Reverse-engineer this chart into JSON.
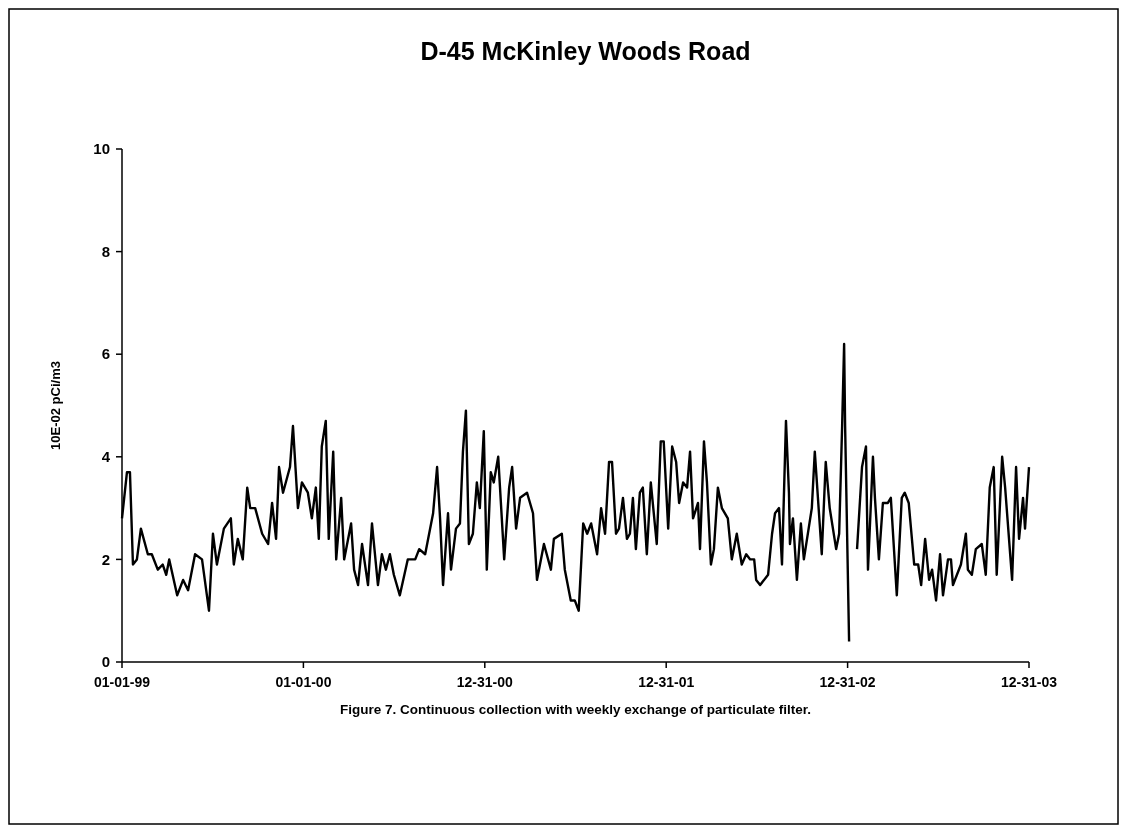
{
  "chart_data": {
    "type": "line",
    "title": "D-45 McKinley Woods Road",
    "ylabel": "10E-02 pCi/m3",
    "annotations": [
      "Figure 7.  Continuous collection with weekly exchange of particulate filter."
    ],
    "xlim": [
      "1999-01-01",
      "2003-12-31"
    ],
    "xticks": [
      {
        "value": "1999-01-01",
        "label": "01-01-99"
      },
      {
        "value": "2000-01-01",
        "label": "01-01-00"
      },
      {
        "value": "2000-12-31",
        "label": "12-31-00"
      },
      {
        "value": "2001-12-31",
        "label": "12-31-01"
      },
      {
        "value": "2002-12-31",
        "label": "12-31-02"
      },
      {
        "value": "2003-12-31",
        "label": "12-31-03"
      }
    ],
    "ylim": [
      0,
      10
    ],
    "yticks": [
      0,
      2,
      4,
      6,
      8,
      10
    ],
    "grid": false,
    "marker": "none",
    "line_style": "solid",
    "series": [
      {
        "color": "#000000",
        "x": [
          "1999-01-01",
          "1999-01-11",
          "1999-01-17",
          "1999-01-23",
          "1999-01-31",
          "1999-02-08",
          "1999-02-22",
          "1999-03-02",
          "1999-03-14",
          "1999-03-24",
          "1999-03-31",
          "1999-04-06",
          "1999-04-22",
          "1999-05-04",
          "1999-05-14",
          "1999-05-28",
          "1999-06-11",
          "1999-06-25",
          "1999-07-03",
          "1999-07-11",
          "1999-07-25",
          "1999-08-08",
          "1999-08-14",
          "1999-08-22",
          "1999-09-01",
          "1999-09-10",
          "1999-09-16",
          "1999-09-26",
          "1999-10-10",
          "1999-10-22",
          "1999-10-30",
          "1999-11-07",
          "1999-11-13",
          "1999-11-21",
          "1999-12-05",
          "1999-12-11",
          "1999-12-21",
          "1999-12-29",
          "2000-01-10",
          "2000-01-18",
          "2000-01-26",
          "2000-02-01",
          "2000-02-07",
          "2000-02-15",
          "2000-02-21",
          "2000-03-01",
          "2000-03-07",
          "2000-03-17",
          "2000-03-23",
          "2000-04-06",
          "2000-04-12",
          "2000-04-20",
          "2000-04-28",
          "2000-05-10",
          "2000-05-18",
          "2000-05-30",
          "2000-06-07",
          "2000-06-15",
          "2000-06-23",
          "2000-07-01",
          "2000-07-13",
          "2000-07-29",
          "2000-08-13",
          "2000-08-21",
          "2000-09-02",
          "2000-09-18",
          "2000-09-26",
          "2000-10-02",
          "2000-10-08",
          "2000-10-18",
          "2000-10-24",
          "2000-11-03",
          "2000-11-11",
          "2000-11-17",
          "2000-11-23",
          "2000-11-29",
          "2000-12-07",
          "2000-12-15",
          "2000-12-21",
          "2000-12-29",
          "2001-01-04",
          "2001-01-12",
          "2001-01-18",
          "2001-01-27",
          "2001-02-08",
          "2001-02-18",
          "2001-02-24",
          "2001-03-04",
          "2001-03-12",
          "2001-03-26",
          "2001-04-07",
          "2001-04-15",
          "2001-04-29",
          "2001-05-13",
          "2001-05-19",
          "2001-06-04",
          "2001-06-10",
          "2001-06-22",
          "2001-06-30",
          "2001-07-08",
          "2001-07-17",
          "2001-07-25",
          "2001-08-02",
          "2001-08-14",
          "2001-08-22",
          "2001-08-30",
          "2001-09-07",
          "2001-09-13",
          "2001-09-21",
          "2001-09-27",
          "2001-10-05",
          "2001-10-13",
          "2001-10-19",
          "2001-10-25",
          "2001-10-31",
          "2001-11-08",
          "2001-11-14",
          "2001-11-22",
          "2001-11-30",
          "2001-12-12",
          "2001-12-20",
          "2001-12-26",
          "2002-01-04",
          "2002-01-12",
          "2002-01-20",
          "2002-01-26",
          "2002-02-03",
          "2002-02-11",
          "2002-02-17",
          "2002-02-23",
          "2002-03-05",
          "2002-03-09",
          "2002-03-17",
          "2002-03-23",
          "2002-03-31",
          "2002-04-06",
          "2002-04-14",
          "2002-04-22",
          "2002-05-04",
          "2002-05-12",
          "2002-05-22",
          "2002-06-01",
          "2002-06-10",
          "2002-06-18",
          "2002-06-26",
          "2002-06-30",
          "2002-07-08",
          "2002-07-24",
          "2002-08-01",
          "2002-08-07",
          "2002-08-15",
          "2002-08-21",
          "2002-08-29",
          "2002-09-04",
          "2002-09-06",
          "2002-09-12",
          "2002-09-20",
          "2002-09-28",
          "2002-10-04",
          "2002-10-20",
          "2002-10-26",
          "2002-11-09",
          "2002-11-17",
          "2002-11-25",
          "2002-12-08",
          "2002-12-14",
          "2002-12-20",
          "2002-12-24",
          "2002-12-26",
          "2003-01-03",
          "2003-01-10",
          "2003-01-19",
          "2003-01-29",
          "2003-02-06",
          "2003-02-10",
          "2003-02-20",
          "2003-02-24",
          "2003-03-04",
          "2003-03-12",
          "2003-03-22",
          "2003-03-28",
          "2003-04-09",
          "2003-04-19",
          "2003-04-25",
          "2003-05-03",
          "2003-05-14",
          "2003-05-22",
          "2003-05-28",
          "2003-06-05",
          "2003-06-13",
          "2003-06-19",
          "2003-06-27",
          "2003-07-05",
          "2003-07-11",
          "2003-07-21",
          "2003-07-27",
          "2003-07-31",
          "2003-08-16",
          "2003-08-26",
          "2003-08-30",
          "2003-09-07",
          "2003-09-15",
          "2003-09-27",
          "2003-10-05",
          "2003-10-13",
          "2003-10-21",
          "2003-10-27",
          "2003-11-07",
          "2003-11-13",
          "2003-11-27",
          "2003-12-05",
          "2003-12-11",
          "2003-12-19",
          "2003-12-23",
          "2003-12-31"
        ],
        "values": [
          2.8,
          3.7,
          3.7,
          1.9,
          2.0,
          2.6,
          2.1,
          2.1,
          1.8,
          1.9,
          1.7,
          2.0,
          1.3,
          1.6,
          1.4,
          2.1,
          2.0,
          1.0,
          2.5,
          1.9,
          2.6,
          2.8,
          1.9,
          2.4,
          2.0,
          3.4,
          3.0,
          3.0,
          2.5,
          2.3,
          3.1,
          2.4,
          3.8,
          3.3,
          3.8,
          4.6,
          3.0,
          3.5,
          3.3,
          2.8,
          3.4,
          2.4,
          4.2,
          4.7,
          2.4,
          4.1,
          2.0,
          3.2,
          2.0,
          2.7,
          1.8,
          1.5,
          2.3,
          1.5,
          2.7,
          1.5,
          2.1,
          1.8,
          2.1,
          1.7,
          1.3,
          2.0,
          2.0,
          2.2,
          2.1,
          2.9,
          3.8,
          2.8,
          1.5,
          2.9,
          1.8,
          2.6,
          2.7,
          4.1,
          4.9,
          2.3,
          2.5,
          3.5,
          3.0,
          4.5,
          1.8,
          3.7,
          3.5,
          4.0,
          2.0,
          3.4,
          3.8,
          2.6,
          3.2,
          3.3,
          2.9,
          1.6,
          2.3,
          1.8,
          2.4,
          2.5,
          1.8,
          1.2,
          1.2,
          1.0,
          2.7,
          2.5,
          2.7,
          2.1,
          3.0,
          2.5,
          3.9,
          3.9,
          2.5,
          2.6,
          3.2,
          2.4,
          2.5,
          3.2,
          2.2,
          3.3,
          3.4,
          2.1,
          3.5,
          2.3,
          4.3,
          4.3,
          2.6,
          4.2,
          3.9,
          3.1,
          3.5,
          3.4,
          4.1,
          2.8,
          3.1,
          2.2,
          4.3,
          3.5,
          1.9,
          2.2,
          3.4,
          3.0,
          2.8,
          2.0,
          2.5,
          1.9,
          2.1,
          2.0,
          2.0,
          1.6,
          1.5,
          1.7,
          2.5,
          2.9,
          3.0,
          1.9,
          4.7,
          3.3,
          2.3,
          2.8,
          1.6,
          2.7,
          2.0,
          3.0,
          4.1,
          2.1,
          3.9,
          3.0,
          2.2,
          2.5,
          4.6,
          6.2,
          4.6,
          0.4,
          null,
          2.2,
          3.8,
          4.2,
          1.8,
          4.0,
          3.2,
          2.0,
          3.1,
          3.1,
          3.2,
          1.3,
          3.2,
          3.3,
          3.1,
          1.9,
          1.9,
          1.5,
          2.4,
          1.6,
          1.8,
          1.2,
          2.1,
          1.3,
          2.0,
          2.0,
          1.5,
          1.9,
          2.5,
          1.8,
          1.7,
          2.2,
          2.3,
          1.7,
          3.4,
          3.8,
          1.7,
          4.0,
          3.4,
          1.6,
          3.8,
          2.4,
          3.2,
          2.6,
          3.8
        ]
      }
    ]
  }
}
